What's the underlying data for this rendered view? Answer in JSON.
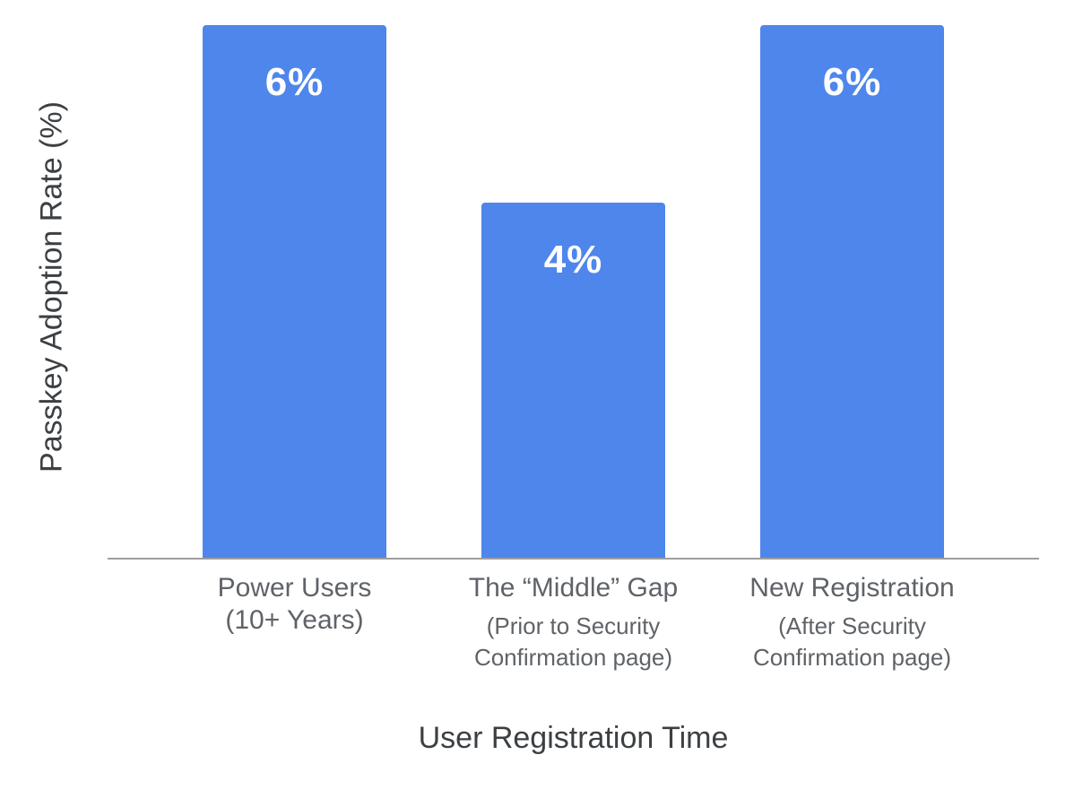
{
  "chart_data": {
    "type": "bar",
    "xlabel": "User Registration Time",
    "ylabel": "Passkey Adoption Rate (%)",
    "ylim": [
      0,
      6
    ],
    "grid": false,
    "legend": "none",
    "bar_color": "#4e86ec",
    "value_label_color": "#ffffff",
    "axis_line_color": "#9e9e9e",
    "category_label_color": "#5f6368",
    "axis_title_color": "#3c4043",
    "categories": [
      {
        "main": [
          "Power Users",
          "(10+ Years)"
        ],
        "sub": []
      },
      {
        "main": [
          "The “Middle” Gap"
        ],
        "sub": [
          "(Prior to Security",
          "Confirmation page)"
        ]
      },
      {
        "main": [
          "New Registration"
        ],
        "sub": [
          "(After Security",
          "Confirmation page)"
        ]
      }
    ],
    "values": [
      6,
      4,
      6
    ],
    "value_labels": [
      "6%",
      "4%",
      "6%"
    ]
  }
}
